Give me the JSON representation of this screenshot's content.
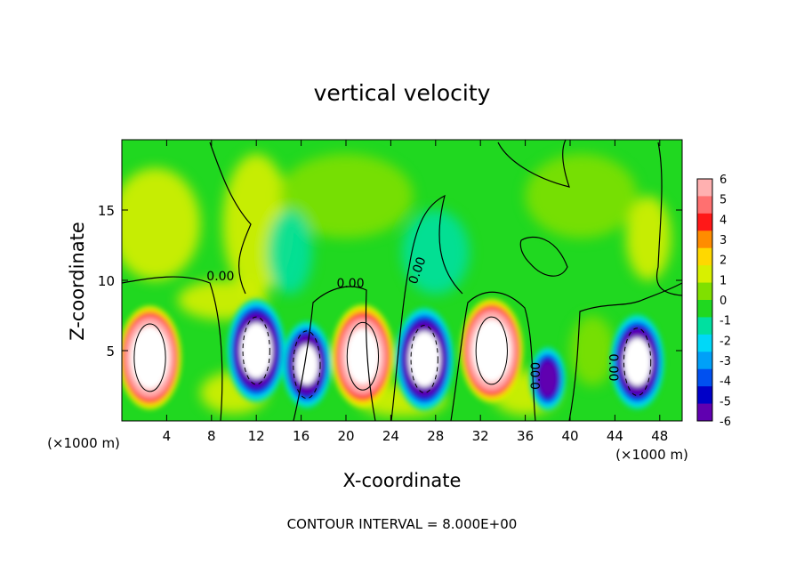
{
  "chart_data": {
    "type": "heatmap",
    "title": "vertical velocity",
    "xlabel": "X-coordinate",
    "ylabel": "Z-coordinate",
    "x_unit_label": "(×1000 m)",
    "y_unit_label": "(×1000 m)",
    "xlim": [
      0,
      50
    ],
    "ylim": [
      0,
      20
    ],
    "x_ticks": [
      4,
      8,
      12,
      16,
      20,
      24,
      28,
      32,
      36,
      40,
      44,
      48
    ],
    "y_ticks": [
      5,
      10,
      15
    ],
    "colorbar": {
      "min": -6,
      "max": 6,
      "ticks": [
        6,
        5,
        4,
        3,
        2,
        1,
        0,
        -1,
        -2,
        -3,
        -4,
        -5,
        -6
      ],
      "colors": [
        "#ffb0b0",
        "#ff7070",
        "#ff1818",
        "#ff8c00",
        "#ffd800",
        "#d8f000",
        "#80e000",
        "#20d820",
        "#00e0a0",
        "#00d8f8",
        "#00a0f8",
        "#0050f0",
        "#0000c8",
        "#6000b0"
      ]
    },
    "contour_labels": [
      "0.00",
      "0.00",
      "0.00",
      "0.00",
      "0.00"
    ],
    "cells": [
      {
        "x": 2.5,
        "z": 4.5,
        "sign": 1,
        "peak": 14
      },
      {
        "x": 12.0,
        "z": 5.0,
        "sign": -1,
        "peak": 12
      },
      {
        "x": 16.5,
        "z": 4.0,
        "sign": -1,
        "peak": 10
      },
      {
        "x": 21.5,
        "z": 4.6,
        "sign": 1,
        "peak": 12
      },
      {
        "x": 27.0,
        "z": 4.4,
        "sign": -1,
        "peak": 12
      },
      {
        "x": 33.0,
        "z": 5.0,
        "sign": 1,
        "peak": 14
      },
      {
        "x": 38.0,
        "z": 3.0,
        "sign": -1,
        "peak": 7
      },
      {
        "x": 46.0,
        "z": 4.2,
        "sign": -1,
        "peak": 11
      }
    ],
    "contour_interval_text": "CONTOUR INTERVAL = 8.000E+00"
  }
}
